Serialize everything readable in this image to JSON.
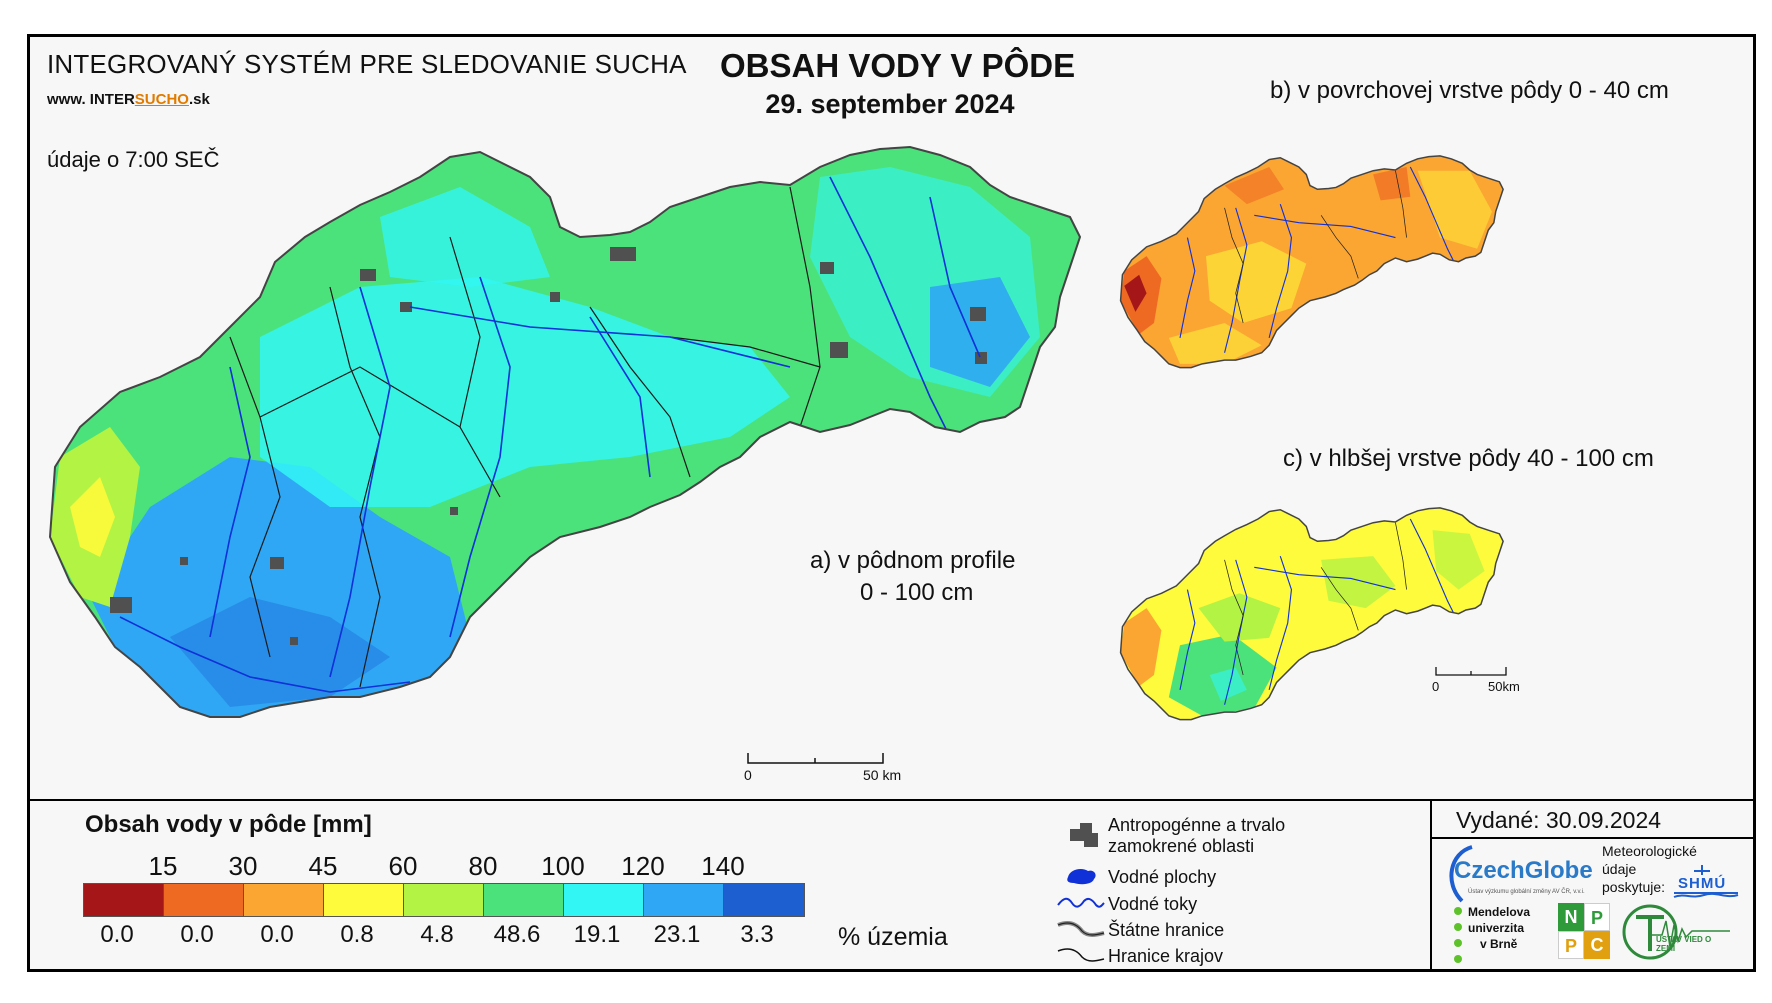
{
  "header": {
    "system_title": "INTEGROVANÝ SYSTÉM PRE SLEDOVANIE SUCHA",
    "website_prefix": "www.",
    "website_main": "INTER",
    "website_highlight": "SUCHO",
    "website_suffix": ".sk",
    "data_time": "údaje o 7:00 SEČ",
    "main_title": "OBSAH VODY V PÔDE",
    "date": "29. september 2024"
  },
  "maps": {
    "a_caption_line1": "a) v pôdnom profile",
    "a_caption_line2": "0 - 100 cm",
    "b_caption": "b) v povrchovej vrstve pôdy 0 - 40 cm",
    "c_caption": "c) v hlbšej vrstve pôdy 40 - 100 cm"
  },
  "scalebars": {
    "main_zero": "0",
    "main_end": "50 km",
    "small_zero": "0",
    "small_end": "50km"
  },
  "legend": {
    "title": "Obsah vody v pôde  [mm]",
    "thresholds": [
      "15",
      "30",
      "45",
      "60",
      "80",
      "100",
      "120",
      "140"
    ],
    "classes": [
      {
        "color": "#a51618",
        "percent": "0.0"
      },
      {
        "color": "#ee6a22",
        "percent": "0.0"
      },
      {
        "color": "#fba532",
        "percent": "0.0"
      },
      {
        "color": "#fdfb3b",
        "percent": "0.8"
      },
      {
        "color": "#b3f343",
        "percent": "4.8"
      },
      {
        "color": "#4be27b",
        "percent": "48.6"
      },
      {
        "color": "#32f6f4",
        "percent": "19.1"
      },
      {
        "color": "#2fa7f4",
        "percent": "23.1"
      },
      {
        "color": "#1d5ed0",
        "percent": "3.3"
      }
    ],
    "percent_label": "% územia"
  },
  "symbols": {
    "anthropogenic_line1": "Antropogénne a trvalo",
    "anthropogenic_line2": "zamokrené oblasti",
    "water_bodies": "Vodné plochy",
    "water_streams": "Vodné toky",
    "state_borders": "Štátne hranice",
    "region_borders": "Hranice krajov"
  },
  "credits": {
    "issued": "Vydané: 30.09.2024",
    "czechglobe": "CzechGlobe",
    "czechglobe_sub": "Ústav výzkumu globální změny AV ČR, v.v.i.",
    "meteo_line1": "Meteorologické",
    "meteo_line2": "údaje",
    "meteo_line3": "poskytuje:",
    "shmu": "SHMÚ",
    "mendel_line1": "Mendelova",
    "mendel_line2": "univerzita",
    "mendel_line3": "v Brně",
    "nppc": [
      "N",
      "P",
      "P",
      "C"
    ],
    "uvz": "ÚSTAV VIED O ZEMI"
  }
}
